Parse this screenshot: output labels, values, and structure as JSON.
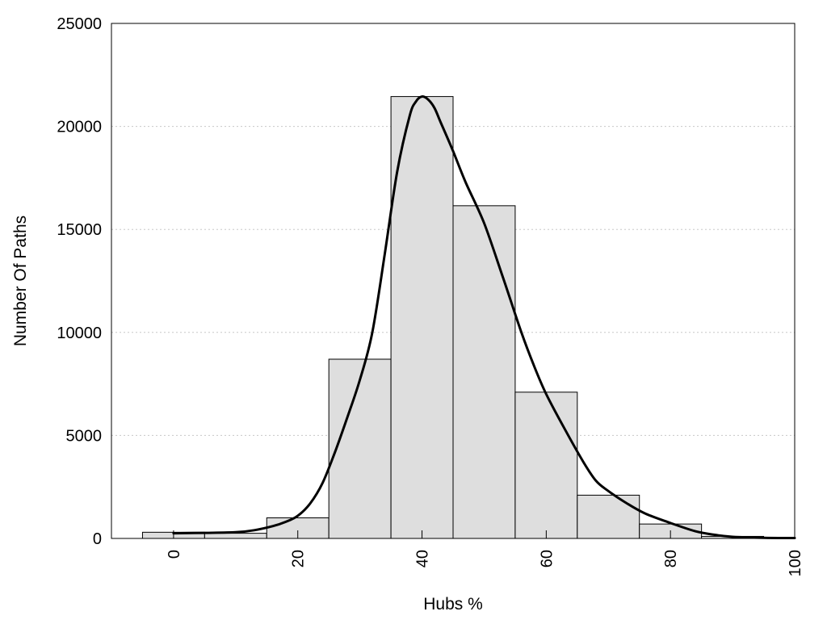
{
  "chart_data": {
    "type": "bar",
    "xlabel": "Hubs %",
    "ylabel": "Number Of Paths",
    "xlim": [
      -10,
      100
    ],
    "ylim": [
      0,
      25000
    ],
    "x_ticks": [
      0,
      20,
      40,
      60,
      80,
      100
    ],
    "y_ticks": [
      0,
      5000,
      10000,
      15000,
      20000,
      25000
    ],
    "grid": "horizontal dotted",
    "bin_width": 10,
    "bins": [
      {
        "center": 0,
        "value": 300
      },
      {
        "center": 10,
        "value": 250
      },
      {
        "center": 20,
        "value": 1000
      },
      {
        "center": 30,
        "value": 8700
      },
      {
        "center": 40,
        "value": 21450
      },
      {
        "center": 50,
        "value": 16150
      },
      {
        "center": 60,
        "value": 7100
      },
      {
        "center": 70,
        "value": 2100
      },
      {
        "center": 80,
        "value": 700
      },
      {
        "center": 90,
        "value": 100
      }
    ],
    "curve": {
      "type": "line",
      "x": [
        0,
        5,
        10,
        13,
        16,
        18,
        20,
        22,
        24,
        26,
        28,
        30,
        32,
        34,
        36,
        38,
        39,
        40,
        41,
        42,
        43,
        45,
        47,
        50,
        53,
        56,
        58,
        60,
        63,
        66,
        68,
        70,
        73,
        76,
        80,
        84,
        87,
        90,
        95,
        100
      ],
      "y": [
        250,
        270,
        300,
        400,
        600,
        800,
        1100,
        1700,
        2700,
        4200,
        5900,
        7700,
        10000,
        13800,
        17800,
        20500,
        21200,
        21450,
        21300,
        20900,
        20200,
        18800,
        17300,
        15300,
        12700,
        10000,
        8400,
        7000,
        5300,
        3700,
        2800,
        2300,
        1700,
        1200,
        750,
        350,
        180,
        80,
        30,
        20
      ]
    },
    "colors": {
      "bar_fill": "#dedede",
      "bar_stroke": "#000000",
      "curve": "#000000",
      "grid": "#c8c8c8"
    }
  }
}
